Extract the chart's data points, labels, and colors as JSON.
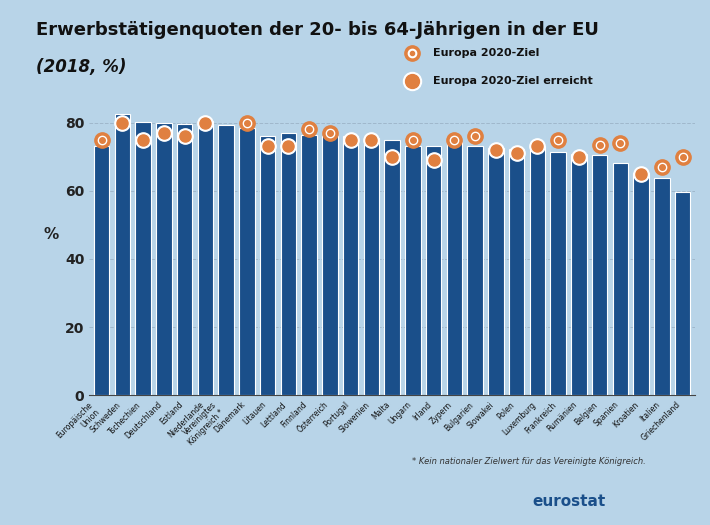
{
  "title_line1": "Erwerbstätigenquoten der 20- bis 64-Jährigen in der EU",
  "title_line2": "(2018, %)",
  "ylabel": "%",
  "background_color": "#b8d4e8",
  "bar_color": "#1a4f8a",
  "bar_edge_color": "#ffffff",
  "categories": [
    "Europäische\nUnion",
    "Schweden",
    "Tschechien",
    "Deutschland",
    "Estland",
    "Niederlande",
    "Vereinigtes\nKönigreich *",
    "Dänemark",
    "Litauen",
    "Lettland",
    "Finnland",
    "Österreich",
    "Portugal",
    "Slowenien",
    "Malta",
    "Ungarn",
    "Irland",
    "Zypern",
    "Bulgarien",
    "Slowakei",
    "Polen",
    "Luxemburg",
    "Frankreich",
    "Rumänien",
    "Belgien",
    "Spanien",
    "Kroatien",
    "Italien",
    "Griechenland"
  ],
  "bar_values": [
    73.2,
    82.6,
    80.1,
    80.0,
    79.5,
    80.4,
    79.3,
    78.3,
    76.2,
    76.8,
    76.3,
    76.2,
    76.1,
    75.4,
    75.0,
    73.0,
    73.0,
    74.3,
    73.0,
    72.5,
    72.2,
    73.2,
    71.3,
    70.9,
    70.5,
    68.0,
    65.3,
    63.7,
    59.7
  ],
  "target_values": [
    75.0,
    80.0,
    75.0,
    77.0,
    76.0,
    80.0,
    null,
    80.0,
    73.0,
    73.0,
    78.0,
    77.0,
    75.0,
    75.0,
    70.0,
    75.0,
    69.0,
    75.0,
    76.0,
    72.0,
    71.0,
    73.0,
    75.0,
    70.0,
    73.5,
    74.0,
    65.0,
    67.0,
    70.0
  ],
  "target_achieved_color": "#e08040",
  "target_not_achieved_color": "#e08040",
  "legend_target_color": "#c8a080",
  "legend_achieved_color": "#e08040",
  "ylim": [
    0,
    90
  ],
  "yticks": [
    0,
    20,
    40,
    60,
    80
  ],
  "grid_color": "#a0b8cc",
  "footnote": "* Kein nationaler Zielwert für das Vereinigte Königreich.",
  "eurostat_text": "eurostat",
  "legend_label1": "Europa 2020-Ziel",
  "legend_label2": "Europa 2020-Ziel erreicht"
}
